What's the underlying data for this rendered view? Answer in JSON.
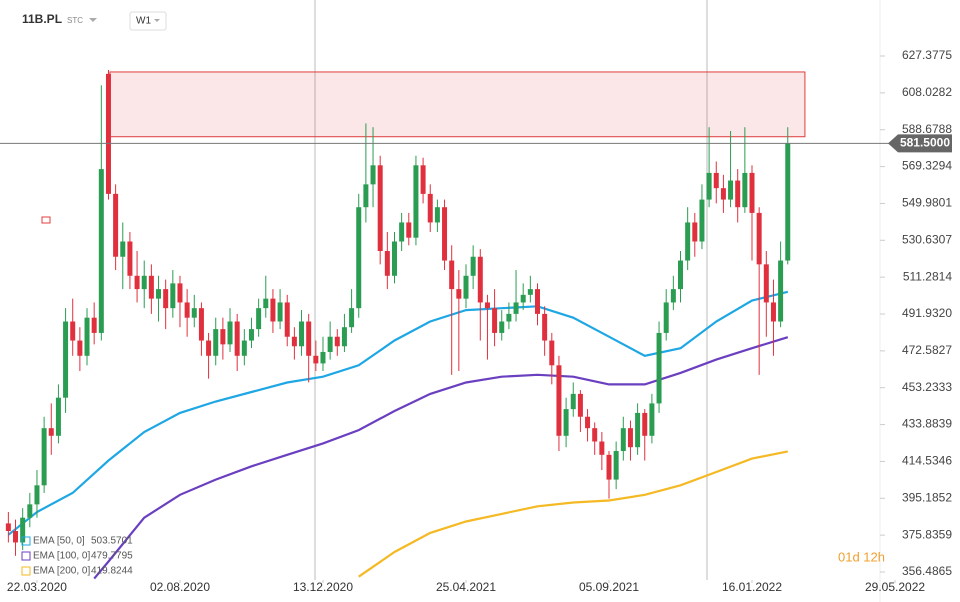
{
  "chart_data": {
    "type": "candlestick",
    "symbol": "11B.PL",
    "exchange": "STC",
    "interval": "W1",
    "timer": "01d 12h",
    "ylim": [
      352.29,
      652.58
    ],
    "xlim": [
      -5.17,
      117.9
    ],
    "yticks": [
      627.3775,
      608.0282,
      588.6788,
      569.3294,
      549.9801,
      530.6307,
      511.2814,
      {
        "value": 491.932,
        "label": "491.9320"
      },
      472.5827,
      453.2333,
      433.8839,
      414.5346,
      395.1852,
      375.8359,
      356.4865
    ],
    "xticks": [
      {
        "value": 0,
        "label": "22.03.2020"
      },
      {
        "value": 20,
        "label": "02.08.2020"
      },
      {
        "value": 40,
        "label": "13.12.2020"
      },
      {
        "value": 60,
        "label": "25.04.2021"
      },
      {
        "value": 80,
        "label": "05.09.2021"
      },
      {
        "value": 100,
        "label": "16.01.2022"
      },
      {
        "value": 120,
        "label": "29.05.2022"
      }
    ],
    "price_line": {
      "value": 581.5,
      "label": "581.5000"
    },
    "zone": {
      "x": [
        10.2,
        107.4
      ],
      "y": [
        585,
        619
      ],
      "color": "#e03c3c"
    },
    "candles": {
      "up_color": "#2a9d52",
      "down_color": "#e0303e",
      "x": [
        -4,
        -3,
        -2,
        -1,
        0,
        1,
        2,
        3,
        4,
        5,
        6,
        7,
        8,
        9,
        10,
        11,
        12,
        13,
        14,
        15,
        16,
        17,
        18,
        19,
        20,
        21,
        22,
        23,
        24,
        25,
        26,
        27,
        28,
        29,
        30,
        31,
        32,
        33,
        34,
        35,
        36,
        37,
        38,
        39,
        40,
        41,
        42,
        43,
        44,
        45,
        46,
        47,
        48,
        49,
        50,
        51,
        52,
        53,
        54,
        55,
        56,
        57,
        58,
        59,
        60,
        61,
        62,
        63,
        64,
        65,
        66,
        67,
        68,
        69,
        70,
        71,
        72,
        73,
        74,
        75,
        76,
        77,
        78,
        79,
        80,
        81,
        82,
        83,
        84,
        85,
        86,
        87,
        88,
        89,
        90,
        91,
        92,
        93,
        94,
        95,
        96,
        97,
        98,
        99,
        100,
        101,
        102,
        103,
        104,
        105
      ],
      "ohlc": [
        [
          382,
          388,
          372,
          378
        ],
        [
          378,
          384,
          365,
          372
        ],
        [
          372,
          390,
          368,
          385
        ],
        [
          385,
          398,
          380,
          392
        ],
        [
          392,
          410,
          385,
          402
        ],
        [
          402,
          438,
          398,
          432
        ],
        [
          432,
          445,
          418,
          428
        ],
        [
          428,
          455,
          424,
          448
        ],
        [
          448,
          495,
          440,
          488
        ],
        [
          488,
          500,
          470,
          478
        ],
        [
          478,
          485,
          462,
          470
        ],
        [
          470,
          495,
          465,
          490
        ],
        [
          490,
          498,
          476,
          482
        ],
        [
          482,
          612,
          478,
          568
        ],
        [
          618,
          620,
          552,
          555
        ],
        [
          555,
          560,
          515,
          522
        ],
        [
          522,
          540,
          505,
          530
        ],
        [
          530,
          535,
          505,
          512
        ],
        [
          512,
          525,
          498,
          505
        ],
        [
          505,
          520,
          495,
          512
        ],
        [
          512,
          518,
          492,
          500
        ],
        [
          500,
          512,
          488,
          505
        ],
        [
          505,
          510,
          484,
          495
        ],
        [
          495,
          515,
          490,
          508
        ],
        [
          508,
          512,
          485,
          498
        ],
        [
          498,
          505,
          480,
          490
        ],
        [
          490,
          502,
          485,
          495
        ],
        [
          495,
          498,
          470,
          478
        ],
        [
          478,
          482,
          458,
          470
        ],
        [
          470,
          490,
          465,
          484
        ],
        [
          484,
          490,
          468,
          476
        ],
        [
          476,
          495,
          472,
          488
        ],
        [
          488,
          492,
          462,
          470
        ],
        [
          470,
          484,
          465,
          478
        ],
        [
          478,
          490,
          474,
          484
        ],
        [
          484,
          500,
          480,
          495
        ],
        [
          495,
          512,
          490,
          500
        ],
        [
          500,
          505,
          482,
          488
        ],
        [
          488,
          505,
          484,
          498
        ],
        [
          498,
          502,
          475,
          480
        ],
        [
          480,
          485,
          468,
          475
        ],
        [
          475,
          494,
          470,
          488
        ],
        [
          488,
          492,
          456,
          470
        ],
        [
          470,
          478,
          462,
          466
        ],
        [
          466,
          480,
          462,
          472
        ],
        [
          472,
          488,
          468,
          480
        ],
        [
          480,
          484,
          470,
          475
        ],
        [
          475,
          492,
          472,
          485
        ],
        [
          485,
          505,
          482,
          495
        ],
        [
          495,
          555,
          490,
          548
        ],
        [
          548,
          592,
          540,
          560
        ],
        [
          560,
          590,
          548,
          570
        ],
        [
          570,
          575,
          518,
          525
        ],
        [
          525,
          535,
          505,
          512
        ],
        [
          512,
          535,
          508,
          530
        ],
        [
          530,
          545,
          525,
          540
        ],
        [
          540,
          545,
          528,
          532
        ],
        [
          532,
          575,
          528,
          570
        ],
        [
          570,
          574,
          550,
          555
        ],
        [
          555,
          560,
          535,
          540
        ],
        [
          540,
          552,
          535,
          548
        ],
        [
          548,
          552,
          515,
          520
        ],
        [
          520,
          528,
          460,
          505
        ],
        [
          505,
          515,
          462,
          500
        ],
        [
          500,
          518,
          495,
          512
        ],
        [
          512,
          528,
          505,
          522
        ],
        [
          522,
          526,
          478,
          498
        ],
        [
          498,
          502,
          468,
          495
        ],
        [
          495,
          505,
          475,
          482
        ],
        [
          482,
          494,
          478,
          488
        ],
        [
          488,
          498,
          484,
          492
        ],
        [
          492,
          515,
          488,
          498
        ],
        [
          498,
          508,
          494,
          502
        ],
        [
          502,
          512,
          498,
          505
        ],
        [
          505,
          508,
          486,
          492
        ],
        [
          492,
          496,
          470,
          478
        ],
        [
          478,
          482,
          455,
          465
        ],
        [
          465,
          470,
          420,
          428
        ],
        [
          428,
          448,
          422,
          442
        ],
        [
          442,
          456,
          438,
          450
        ],
        [
          450,
          452,
          430,
          438
        ],
        [
          438,
          442,
          425,
          432
        ],
        [
          432,
          435,
          418,
          425
        ],
        [
          425,
          430,
          410,
          418
        ],
        [
          418,
          420,
          395,
          405
        ],
        [
          405,
          425,
          400,
          420
        ],
        [
          420,
          438,
          415,
          432
        ],
        [
          432,
          436,
          415,
          422
        ],
        [
          422,
          445,
          418,
          440
        ],
        [
          440,
          442,
          415,
          428
        ],
        [
          428,
          450,
          424,
          445
        ],
        [
          445,
          488,
          440,
          482
        ],
        [
          482,
          505,
          478,
          498
        ],
        [
          498,
          512,
          494,
          505
        ],
        [
          505,
          525,
          498,
          520
        ],
        [
          520,
          548,
          515,
          540
        ],
        [
          540,
          545,
          522,
          530
        ],
        [
          530,
          560,
          526,
          552
        ],
        [
          552,
          590,
          548,
          566
        ],
        [
          566,
          572,
          550,
          558
        ],
        [
          558,
          565,
          545,
          552
        ],
        [
          552,
          588,
          548,
          562
        ],
        [
          562,
          568,
          540,
          548
        ],
        [
          548,
          590,
          545,
          566
        ],
        [
          566,
          570,
          520,
          545
        ],
        [
          545,
          548,
          460,
          518
        ],
        [
          518,
          525,
          480,
          498
        ],
        [
          498,
          510,
          470,
          488
        ],
        [
          488,
          530,
          485,
          520
        ],
        [
          520,
          590,
          518,
          581.5
        ]
      ]
    },
    "lines": [
      {
        "name": "EMA [50, 0]",
        "color": "#1ea7e4",
        "x": [
          -4,
          0,
          5,
          10,
          15,
          20,
          25,
          30,
          35,
          40,
          45,
          50,
          55,
          60,
          65,
          70,
          75,
          80,
          85,
          90,
          95,
          100,
          105
        ],
        "values": [
          376,
          388,
          398,
          415,
          430,
          440,
          446,
          451,
          456,
          459,
          465,
          478,
          488,
          494,
          495,
          496,
          490,
          480,
          470,
          474,
          488,
          499,
          503.5701
        ]
      },
      {
        "name": "EMA [100, 0]",
        "color": "#6a3fc0",
        "x": [
          8,
          10,
          15,
          20,
          25,
          30,
          35,
          40,
          45,
          50,
          55,
          60,
          65,
          70,
          75,
          80,
          85,
          90,
          95,
          100,
          105
        ],
        "values": [
          353,
          362,
          385,
          397,
          405,
          412,
          418,
          424,
          431,
          441,
          450,
          456,
          459,
          460,
          459,
          455,
          455,
          461,
          468,
          474,
          479.7795
        ]
      },
      {
        "name": "EMA [200, 0]",
        "color": "#f4b923",
        "x": [
          45,
          50,
          55,
          60,
          65,
          70,
          75,
          80,
          85,
          90,
          95,
          100,
          105
        ],
        "values": [
          354,
          367,
          377,
          383,
          387,
          391,
          393,
          394,
          397,
          402,
          409,
          416,
          419.8244
        ]
      }
    ]
  }
}
